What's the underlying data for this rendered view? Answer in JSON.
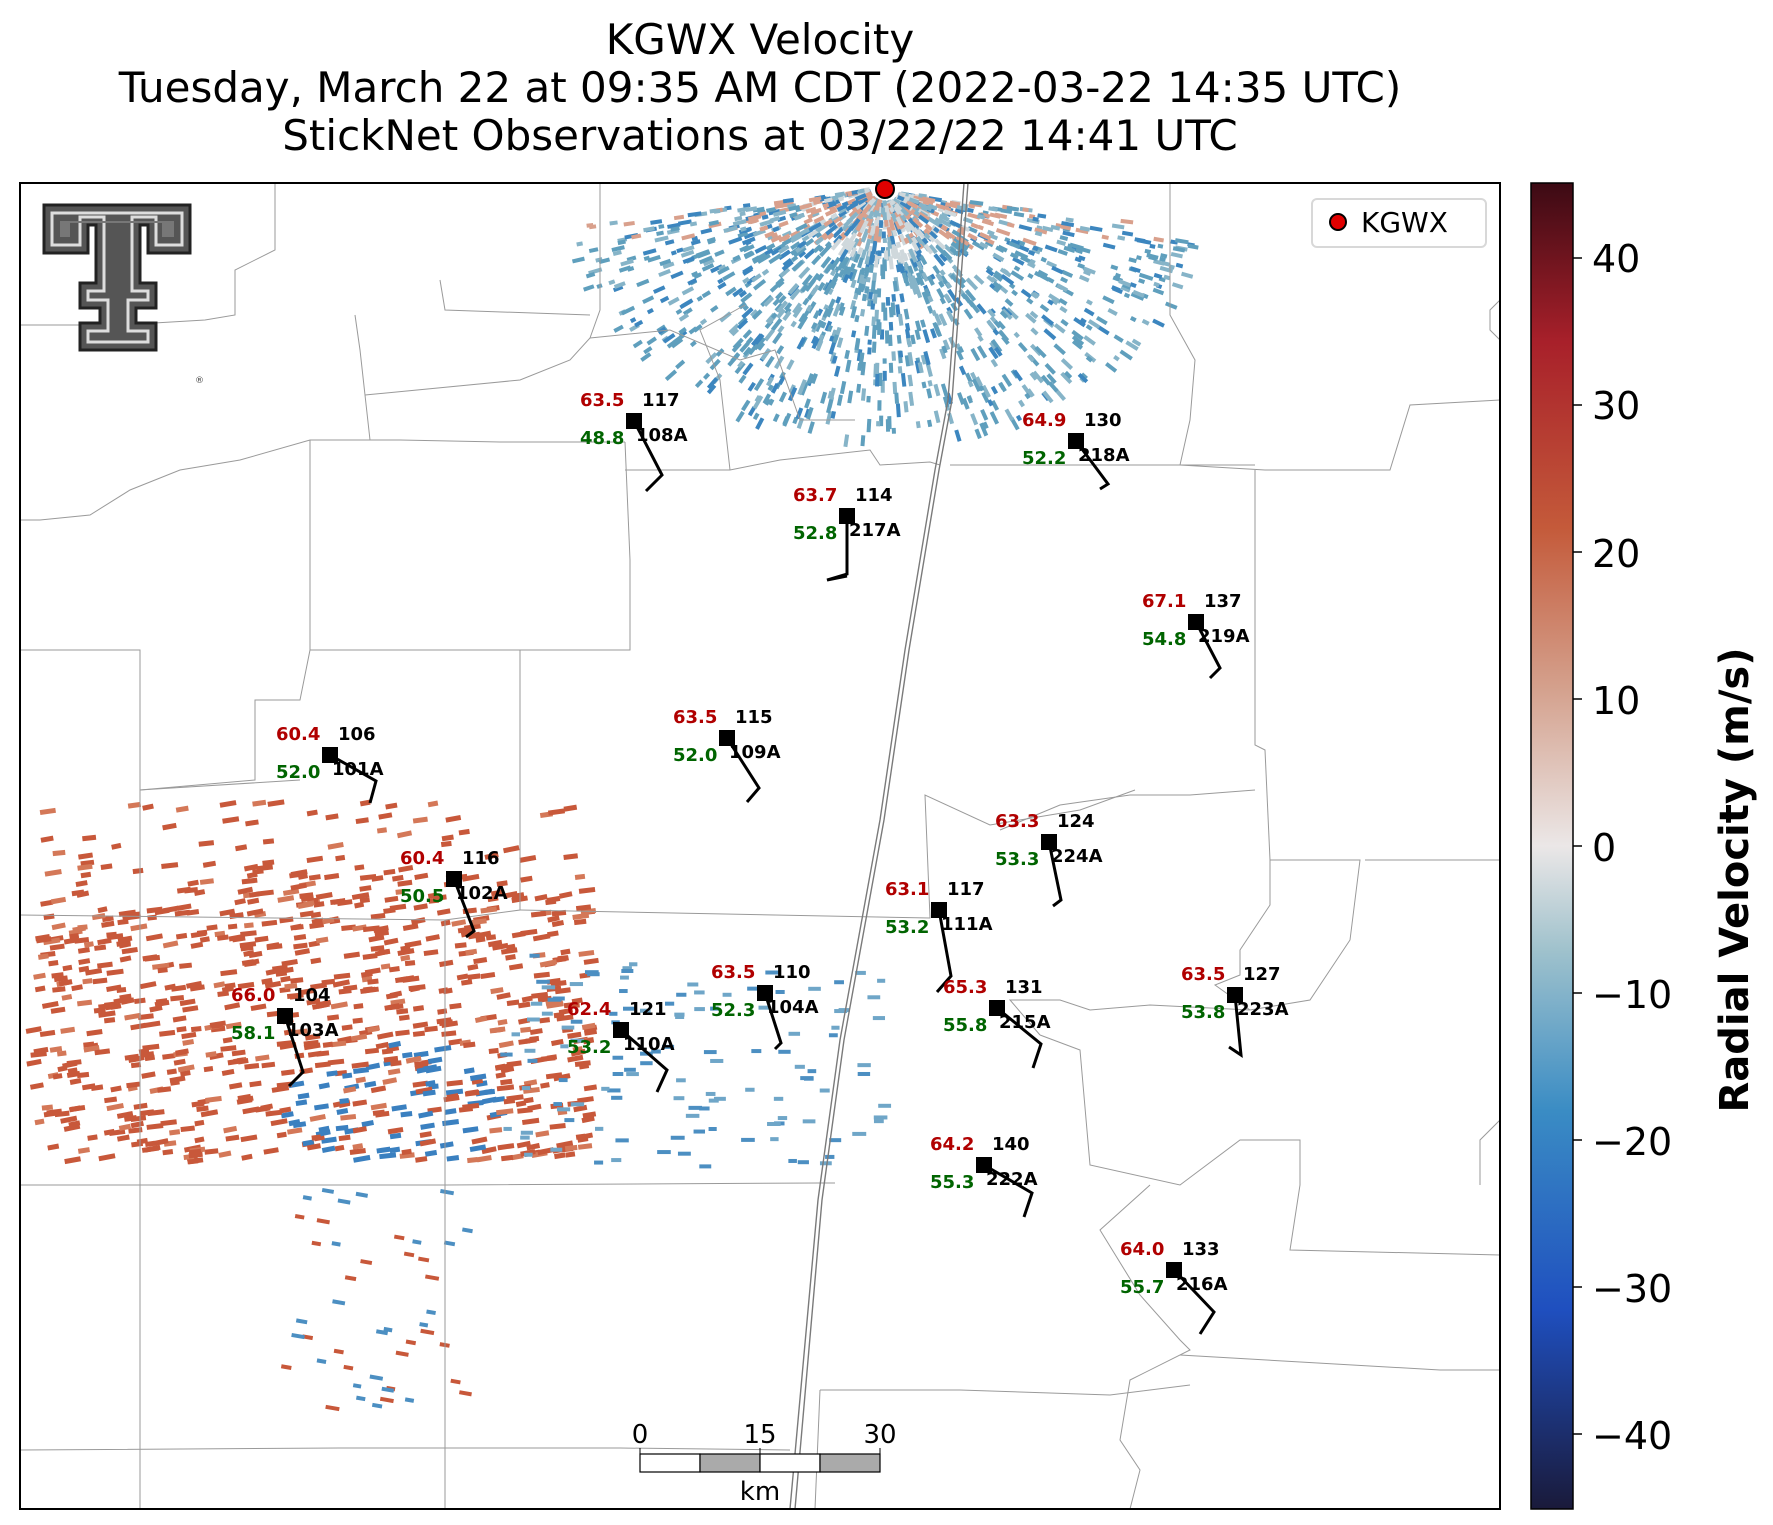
{
  "title": {
    "line1": "KGWX Velocity",
    "line2": "Tuesday, March 22 at 09:35 AM CDT (2022-03-22 14:35 UTC)",
    "line3": "StickNet Observations at 03/22/22 14:41 UTC"
  },
  "legend": {
    "label": "KGWX",
    "marker_color": "#e00000"
  },
  "colorbar": {
    "label": "Radial Velocity (m/s)",
    "ticks": [
      "40",
      "30",
      "20",
      "10",
      "0",
      "−10",
      "−20",
      "−30",
      "−40"
    ],
    "range": [
      -45,
      45
    ],
    "colors": [
      "#1a1a3a",
      "#1f4fbf",
      "#3a8cc4",
      "#9ec1cc",
      "#ebe7e7",
      "#d4a08c",
      "#c45a3a",
      "#a8202a",
      "#3c0a14"
    ]
  },
  "scale_bar": {
    "ticks": [
      "0",
      "15",
      "30"
    ],
    "unit": "km"
  },
  "logo": {
    "icon": "texas-tech-double-t-logo",
    "text": "T"
  },
  "stations": [
    {
      "id": "108A",
      "temp": "63.5",
      "dew": "48.8",
      "dir": "117"
    },
    {
      "id": "218A",
      "temp": "64.9",
      "dew": "52.2",
      "dir": "130"
    },
    {
      "id": "217A",
      "temp": "63.7",
      "dew": "52.8",
      "dir": "114"
    },
    {
      "id": "219A",
      "temp": "67.1",
      "dew": "54.8",
      "dir": "137"
    },
    {
      "id": "101A",
      "temp": "60.4",
      "dew": "52.0",
      "dir": "106"
    },
    {
      "id": "109A",
      "temp": "63.5",
      "dew": "52.0",
      "dir": "115"
    },
    {
      "id": "224A",
      "temp": "63.3",
      "dew": "53.3",
      "dir": "124"
    },
    {
      "id": "102A",
      "temp": "60.4",
      "dew": "50.5",
      "dir": "116"
    },
    {
      "id": "111A",
      "temp": "63.1",
      "dew": "53.2",
      "dir": "117"
    },
    {
      "id": "104A",
      "temp": "63.5",
      "dew": "52.3",
      "dir": "110"
    },
    {
      "id": "215A",
      "temp": "65.3",
      "dew": "55.8",
      "dir": "131"
    },
    {
      "id": "223A",
      "temp": "63.5",
      "dew": "53.8",
      "dir": "127"
    },
    {
      "id": "103A",
      "temp": "66.0",
      "dew": "58.1",
      "dir": "104"
    },
    {
      "id": "110A",
      "temp": "62.4",
      "dew": "53.2",
      "dir": "121"
    },
    {
      "id": "222A",
      "temp": "64.2",
      "dew": "55.3",
      "dir": "140"
    },
    {
      "id": "216A",
      "temp": "64.0",
      "dew": "55.7",
      "dir": "133"
    }
  ],
  "colors": {
    "temp": "#b00000",
    "dew": "#006400",
    "county_line": "#9a9a9a",
    "state_line": "#7a7a7a"
  }
}
